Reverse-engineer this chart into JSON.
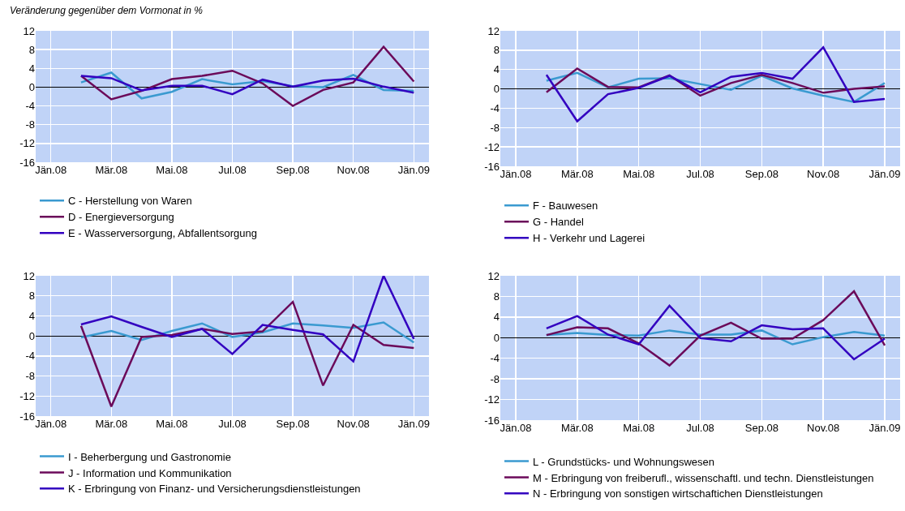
{
  "chart_data": [
    {
      "type": "line",
      "annotations": [
        "Veränderung gegenüber dem Vormonat in %"
      ],
      "categories": [
        "Jän.08",
        null,
        "Mär.08",
        null,
        "Mai.08",
        null,
        "Jul.08",
        null,
        "Sep.08",
        null,
        "Nov.08",
        null,
        "Jän.09"
      ],
      "ylim": [
        -16,
        12
      ],
      "yticks": [
        -16,
        -12,
        -8,
        -4,
        0,
        4,
        8,
        12
      ],
      "grid": true,
      "legend": "bottom",
      "series": [
        {
          "name": "C - Herstellung von Waren",
          "color": "#3a9ad0",
          "values": [
            null,
            1.0,
            3.1,
            -2.4,
            -1.0,
            1.7,
            0.6,
            1.3,
            0.2,
            0.0,
            2.6,
            -0.6,
            -0.8
          ]
        },
        {
          "name": "D - Energieversorgung",
          "color": "#6b0a5a",
          "values": [
            null,
            2.4,
            -2.6,
            -0.8,
            1.7,
            2.4,
            3.5,
            0.8,
            -4.0,
            -0.6,
            1.0,
            8.6,
            1.2
          ]
        },
        {
          "name": "E - Wasserversorgung, Abfallentsorgung",
          "color": "#3300c0",
          "values": [
            null,
            2.4,
            1.9,
            -0.7,
            0.3,
            0.3,
            -1.5,
            1.6,
            0.1,
            1.4,
            1.8,
            0.1,
            -1.2
          ]
        }
      ]
    },
    {
      "type": "line",
      "categories": [
        "Jän.08",
        null,
        "Mär.08",
        null,
        "Mai.08",
        null,
        "Jul.08",
        null,
        "Sep.08",
        null,
        "Nov.08",
        null,
        "Jän.09"
      ],
      "ylim": [
        -16,
        12
      ],
      "yticks": [
        -16,
        -12,
        -8,
        -4,
        0,
        4,
        8,
        12
      ],
      "grid": true,
      "legend": "bottom",
      "series": [
        {
          "name": "F - Bauwesen",
          "color": "#3a9ad0",
          "values": [
            null,
            1.7,
            3.3,
            0.3,
            2.1,
            2.2,
            1.0,
            -0.2,
            2.7,
            0.1,
            -1.4,
            -2.7,
            1.2
          ]
        },
        {
          "name": "G - Handel",
          "color": "#6b0a5a",
          "values": [
            null,
            -0.7,
            4.2,
            0.4,
            0.3,
            2.8,
            -1.4,
            1.2,
            2.9,
            1.2,
            -0.8,
            0.0,
            0.5
          ]
        },
        {
          "name": "H - Verkehr und Lagerei",
          "color": "#3300c0",
          "values": [
            null,
            2.9,
            -6.7,
            -1.1,
            0.2,
            2.7,
            -0.7,
            2.5,
            3.3,
            2.1,
            8.6,
            -2.7,
            -2.1
          ]
        }
      ]
    },
    {
      "type": "line",
      "categories": [
        "Jän.08",
        null,
        "Mär.08",
        null,
        "Mai.08",
        null,
        "Jul.08",
        null,
        "Sep.08",
        null,
        "Nov.08",
        null,
        "Jän.09"
      ],
      "ylim": [
        -16,
        12
      ],
      "yticks": [
        -16,
        -12,
        -8,
        -4,
        0,
        4,
        8,
        12
      ],
      "grid": true,
      "legend": "bottom",
      "series": [
        {
          "name": "I - Beherbergung und Gastronomie",
          "color": "#3a9ad0",
          "values": [
            null,
            -0.3,
            1.0,
            -0.8,
            1.0,
            2.5,
            -0.2,
            0.7,
            2.5,
            2.1,
            1.6,
            2.7,
            -1.3
          ]
        },
        {
          "name": "J - Information und Kommunikation",
          "color": "#6b0a5a",
          "values": [
            null,
            2.0,
            -14.1,
            -0.2,
            0.2,
            1.4,
            0.4,
            0.9,
            6.8,
            -9.9,
            2.2,
            -1.8,
            -2.4
          ]
        },
        {
          "name": "K - Erbringung von Finanz- und Versicherungsdienstleistungen",
          "color": "#3300c0",
          "values": [
            null,
            2.3,
            3.9,
            1.8,
            -0.2,
            1.4,
            -3.6,
            2.2,
            1.2,
            0.3,
            -5.1,
            12.0,
            -0.6
          ]
        }
      ]
    },
    {
      "type": "line",
      "categories": [
        "Jän.08",
        null,
        "Mär.08",
        null,
        "Mai.08",
        null,
        "Jul.08",
        null,
        "Sep.08",
        null,
        "Nov.08",
        null,
        "Jän.09"
      ],
      "ylim": [
        -16,
        12
      ],
      "yticks": [
        -16,
        -12,
        -8,
        -4,
        0,
        4,
        8,
        12
      ],
      "grid": true,
      "legend": "bottom",
      "series": [
        {
          "name": "L - Grundstücks- und Wohnungswesen",
          "color": "#3a9ad0",
          "values": [
            null,
            0.5,
            0.9,
            0.5,
            0.4,
            1.4,
            0.6,
            0.6,
            1.4,
            -1.3,
            0.1,
            1.1,
            0.4
          ]
        },
        {
          "name": "M - Erbringung von freiberufl., wissenschaftl. und techn. Dienstleistungen",
          "color": "#6b0a5a",
          "values": [
            null,
            0.5,
            2.0,
            1.8,
            -1.1,
            -5.4,
            0.4,
            2.9,
            -0.2,
            -0.2,
            3.4,
            9.0,
            -1.5
          ]
        },
        {
          "name": "N - Erbringung von sonstigen wirtschaftichen Dienstleistungen",
          "color": "#3300c0",
          "values": [
            null,
            1.8,
            4.2,
            0.6,
            -1.3,
            6.2,
            -0.1,
            -0.7,
            2.4,
            1.6,
            1.8,
            -4.2,
            -0.2
          ]
        }
      ]
    }
  ]
}
